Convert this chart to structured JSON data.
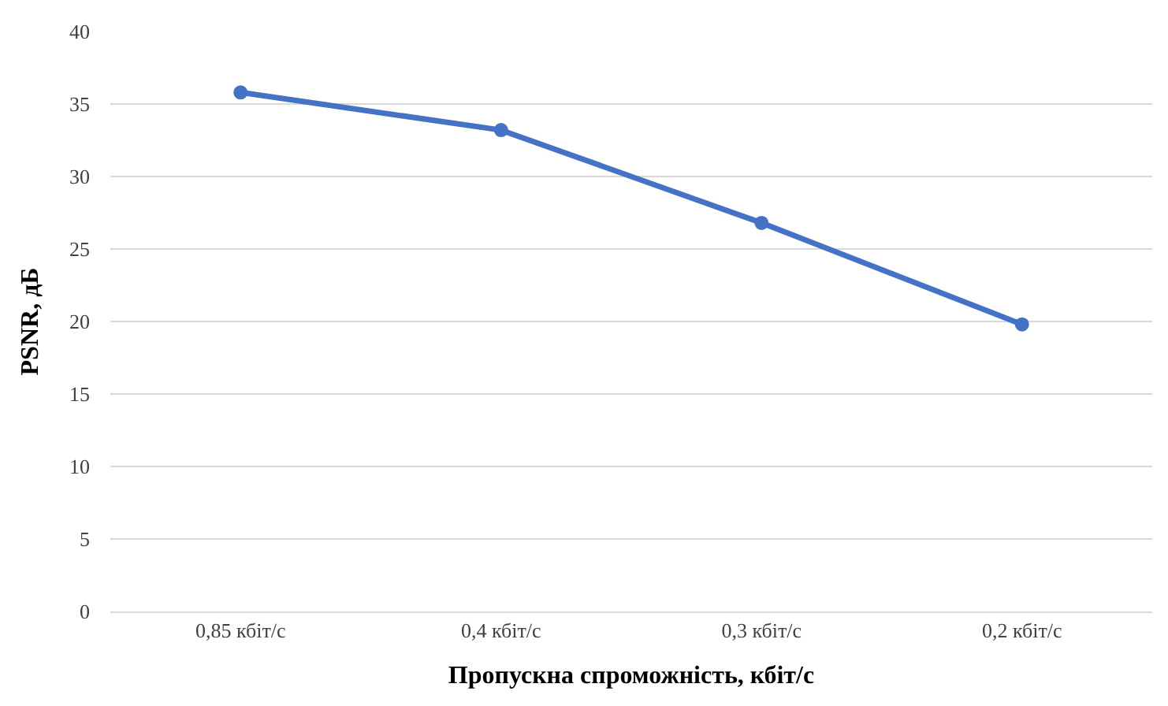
{
  "chart_data": {
    "type": "line",
    "xlabel": "Пропускна спроможність, кбіт/с",
    "ylabel": "PSNR, дБ",
    "categories": [
      "0,85 кбіт/с",
      "0,4 кбіт/с",
      "0,3 кбіт/с",
      "0,2 кбіт/с"
    ],
    "series": [
      {
        "color": "#4472c4",
        "values": [
          35.8,
          33.2,
          26.8,
          19.8
        ]
      }
    ],
    "ylim": [
      0,
      40
    ],
    "yticks": [
      0,
      5,
      10,
      15,
      20,
      25,
      30,
      35,
      40
    ],
    "grid": "y",
    "marker": "circle",
    "line_style": "solid"
  }
}
